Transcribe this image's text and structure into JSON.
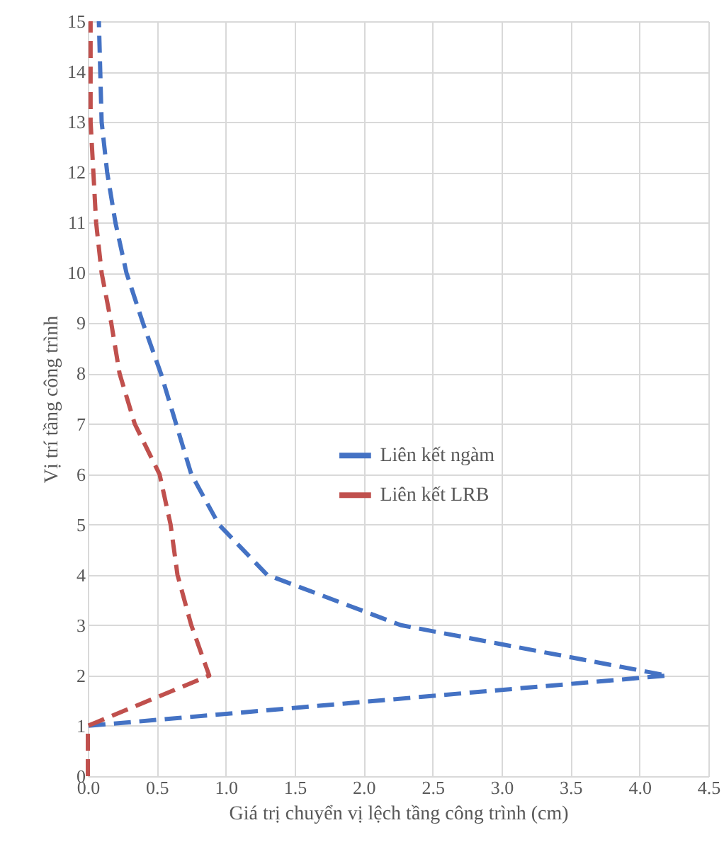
{
  "chart_data": {
    "type": "line",
    "xlabel": "Giá trị chuyển vị lệch tầng công trình (cm)",
    "ylabel": "Vị trí tầng công trình",
    "series": [
      {
        "name": "Liên kết ngàm",
        "color": "#4472c4",
        "line_style": "dashed",
        "x": [
          0,
          0,
          4.2,
          2.27,
          1.3,
          0.95,
          0.75,
          0.64,
          0.53,
          0.4,
          0.28,
          0.2,
          0.14,
          0.1,
          0.09,
          0.08
        ],
        "values": [
          0,
          1,
          2,
          3,
          4,
          5,
          6,
          7,
          8,
          9,
          10,
          11,
          12,
          13,
          14,
          15
        ]
      },
      {
        "name": "Liên kết LRB",
        "color": "#c0504d",
        "line_style": "dashed",
        "x": [
          0,
          0,
          0.88,
          0.75,
          0.65,
          0.6,
          0.52,
          0.34,
          0.23,
          0.17,
          0.1,
          0.06,
          0.04,
          0.02,
          0.02,
          0.02
        ],
        "values": [
          0,
          1,
          2,
          3,
          4,
          5,
          6,
          7,
          8,
          9,
          10,
          11,
          12,
          13,
          14,
          15
        ]
      }
    ],
    "xlim": [
      0,
      4.5
    ],
    "xticks": [
      {
        "value": 0,
        "label": "0.0"
      },
      {
        "value": 0.5,
        "label": "0.5"
      },
      {
        "value": 1,
        "label": "1.0"
      },
      {
        "value": 1.5,
        "label": "1.5"
      },
      {
        "value": 2,
        "label": "2.0"
      },
      {
        "value": 2.5,
        "label": "2.5"
      },
      {
        "value": 3,
        "label": "3.0"
      },
      {
        "value": 3.5,
        "label": "3.5"
      },
      {
        "value": 4,
        "label": "4.0"
      },
      {
        "value": 4.5,
        "label": "4.5"
      }
    ],
    "ylim": [
      0,
      15
    ],
    "yticks": [
      0,
      1,
      2,
      3,
      4,
      5,
      6,
      7,
      8,
      9,
      10,
      11,
      12,
      13,
      14,
      15
    ],
    "grid": true,
    "legend": "center"
  }
}
